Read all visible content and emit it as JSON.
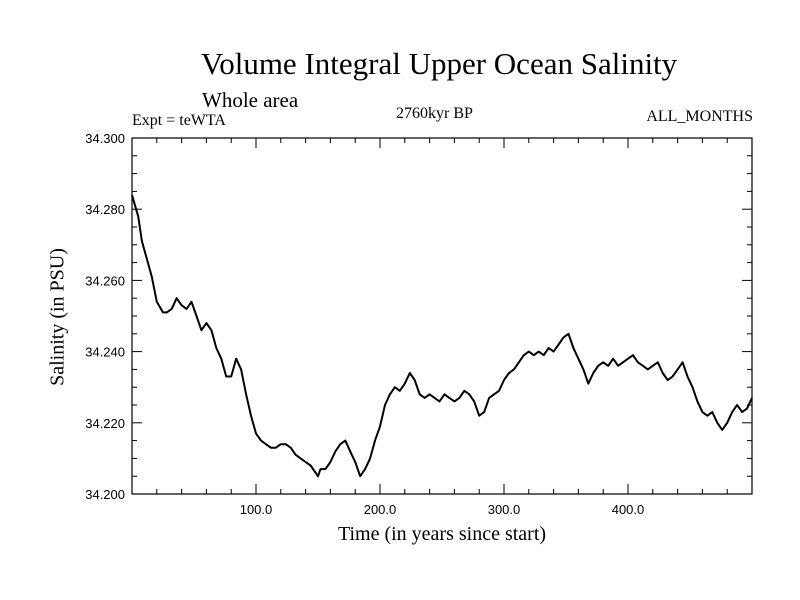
{
  "chart_data": {
    "type": "line",
    "title": "Volume Integral Upper Ocean Salinity",
    "subtitle": "Whole area",
    "experiment": "Expt = teWTA",
    "period": "2760kyr BP",
    "months": "ALL_MONTHS",
    "xlabel": "Time (in years since start)",
    "ylabel": "Salinity (in PSU)",
    "xlim": [
      0,
      500
    ],
    "ylim": [
      34.2,
      34.3
    ],
    "xticks": [
      100,
      200,
      300,
      400
    ],
    "xtick_labels": [
      "100.0",
      "200.0",
      "300.0",
      "400.0"
    ],
    "yticks": [
      34.2,
      34.22,
      34.24,
      34.26,
      34.28,
      34.3
    ],
    "ytick_labels": [
      "34.200",
      "34.220",
      "34.240",
      "34.260",
      "34.280",
      "34.300"
    ],
    "series": [
      {
        "name": "Salinity",
        "x": [
          0,
          5,
          8,
          12,
          16,
          20,
          25,
          28,
          32,
          36,
          40,
          44,
          48,
          52,
          56,
          60,
          64,
          68,
          72,
          76,
          80,
          84,
          88,
          92,
          96,
          100,
          104,
          108,
          112,
          116,
          120,
          124,
          128,
          132,
          136,
          140,
          144,
          148,
          150,
          152,
          156,
          160,
          164,
          168,
          172,
          176,
          180,
          184,
          188,
          192,
          196,
          200,
          204,
          208,
          212,
          216,
          220,
          224,
          228,
          232,
          236,
          240,
          244,
          248,
          252,
          256,
          260,
          264,
          268,
          272,
          276,
          280,
          284,
          288,
          292,
          296,
          300,
          304,
          308,
          312,
          316,
          320,
          324,
          328,
          332,
          336,
          340,
          344,
          348,
          352,
          356,
          360,
          364,
          368,
          372,
          376,
          380,
          384,
          388,
          392,
          396,
          400,
          404,
          408,
          412,
          416,
          420,
          424,
          428,
          432,
          436,
          440,
          444,
          448,
          452,
          456,
          460,
          464,
          468,
          472,
          476,
          480,
          484,
          488,
          492,
          496,
          500
        ],
        "values": [
          34.284,
          34.278,
          34.271,
          34.266,
          34.261,
          34.254,
          34.251,
          34.251,
          34.252,
          34.255,
          34.253,
          34.252,
          34.254,
          34.25,
          34.246,
          34.248,
          34.246,
          34.241,
          34.238,
          34.233,
          34.233,
          34.238,
          34.235,
          34.228,
          34.222,
          34.217,
          34.215,
          34.214,
          34.213,
          34.213,
          34.214,
          34.214,
          34.213,
          34.211,
          34.21,
          34.209,
          34.208,
          34.206,
          34.205,
          34.207,
          34.207,
          34.209,
          34.212,
          34.214,
          34.215,
          34.212,
          34.209,
          34.205,
          34.207,
          34.21,
          34.215,
          34.219,
          34.225,
          34.228,
          34.23,
          34.229,
          34.231,
          34.234,
          34.232,
          34.228,
          34.227,
          34.228,
          34.227,
          34.226,
          34.228,
          34.227,
          34.226,
          34.227,
          34.229,
          34.228,
          34.226,
          34.222,
          34.223,
          34.227,
          34.228,
          34.229,
          34.232,
          34.234,
          34.235,
          34.237,
          34.239,
          34.24,
          34.239,
          34.24,
          34.239,
          34.241,
          34.24,
          34.242,
          34.244,
          34.245,
          34.241,
          34.238,
          34.235,
          34.231,
          34.234,
          34.236,
          34.237,
          34.236,
          34.238,
          34.236,
          34.237,
          34.238,
          34.239,
          34.237,
          34.236,
          34.235,
          34.236,
          34.237,
          34.234,
          34.232,
          34.233,
          34.235,
          34.237,
          34.233,
          34.23,
          34.226,
          34.223,
          34.222,
          34.223,
          34.22,
          34.218,
          34.22,
          34.223,
          34.225,
          34.223,
          34.224,
          34.227
        ]
      }
    ]
  }
}
